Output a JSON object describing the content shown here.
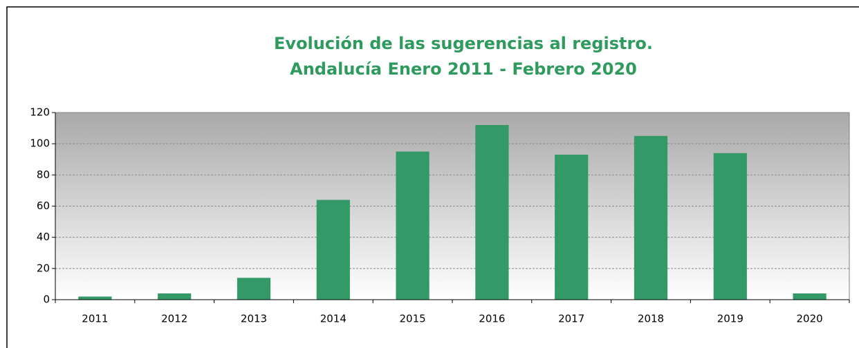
{
  "chart_data": {
    "type": "bar",
    "title": [
      "Evolución de las sugerencias al registro.",
      "Andalucía Enero 2011 - Febrero 2020"
    ],
    "categories": [
      "2011",
      "2012",
      "2013",
      "2014",
      "2015",
      "2016",
      "2017",
      "2018",
      "2019",
      "2020"
    ],
    "values": [
      2,
      4,
      14,
      64,
      95,
      112,
      93,
      105,
      94,
      4
    ],
    "color": "#339966",
    "ylim": [
      0,
      120
    ],
    "yticks": [
      0,
      20,
      40,
      60,
      80,
      100,
      120
    ],
    "grid": true
  }
}
